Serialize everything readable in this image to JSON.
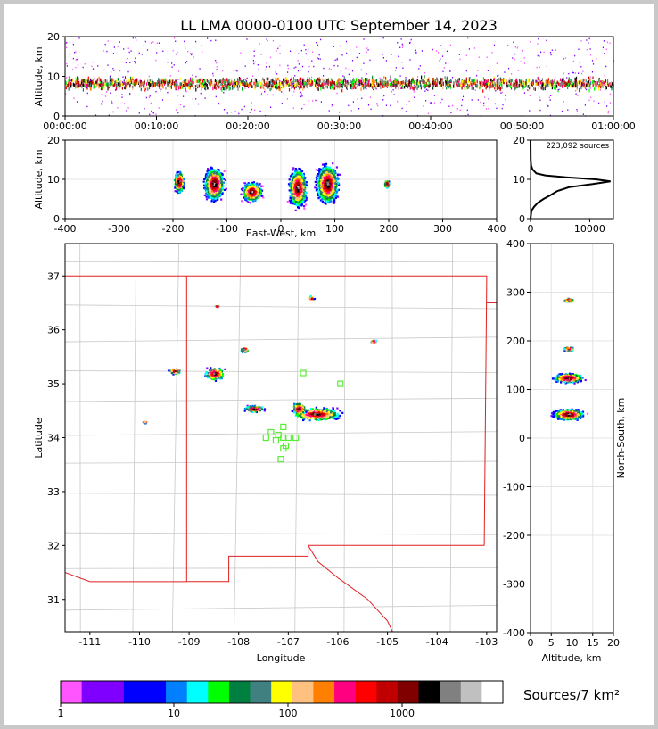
{
  "chart_data": [
    {
      "panel": "altitude-time",
      "type": "scatter",
      "title": "LL LMA 0000-0100 UTC September 14, 2023",
      "ylabel": "Altitude, km",
      "xlim": [
        "00:00:00",
        "01:00:00"
      ],
      "ylim": [
        0,
        20
      ],
      "xticks": [
        "00:00:00",
        "00:10:00",
        "00:20:00",
        "00:30:00",
        "00:40:00",
        "00:50:00",
        "01:00:00"
      ],
      "yticks": [
        0,
        10,
        20
      ],
      "core_altitude_km": [
        5,
        12
      ]
    },
    {
      "panel": "east-west-altitude",
      "type": "heatmap",
      "xlabel": "East-West, km",
      "ylabel": "Altitude, km",
      "xlim": [
        -400,
        400
      ],
      "ylim": [
        0,
        20
      ],
      "xticks": [
        -400,
        -300,
        -200,
        -100,
        0,
        100,
        200,
        300,
        400
      ],
      "yticks": [
        0,
        10,
        20
      ],
      "clusters": [
        {
          "x": -190,
          "alt": 9.5,
          "w": 20,
          "h": 8
        },
        {
          "x": -125,
          "alt": 9.0,
          "w": 40,
          "h": 12
        },
        {
          "x": -55,
          "alt": 7.0,
          "w": 40,
          "h": 7
        },
        {
          "x": 30,
          "alt": 8.0,
          "w": 35,
          "h": 14
        },
        {
          "x": 85,
          "alt": 9.0,
          "w": 45,
          "h": 14
        },
        {
          "x": 195,
          "alt": 9.0,
          "w": 10,
          "h": 3
        }
      ]
    },
    {
      "panel": "altitude-histogram",
      "type": "line",
      "annotation": "223,092 sources",
      "xlim": [
        0,
        14000
      ],
      "ylim": [
        0,
        20
      ],
      "xticks": [
        0,
        10000
      ],
      "yticks": [
        0,
        10,
        20
      ],
      "points": [
        [
          0,
          0
        ],
        [
          150,
          2
        ],
        [
          600,
          3
        ],
        [
          1200,
          4
        ],
        [
          2200,
          5
        ],
        [
          3400,
          6
        ],
        [
          4500,
          7
        ],
        [
          6500,
          8
        ],
        [
          10500,
          8.8
        ],
        [
          13500,
          9.5
        ],
        [
          11000,
          10.0
        ],
        [
          6000,
          10.5
        ],
        [
          2500,
          11.0
        ],
        [
          1000,
          11.5
        ],
        [
          350,
          12.5
        ],
        [
          100,
          13.5
        ],
        [
          30,
          15
        ],
        [
          0,
          20
        ]
      ]
    },
    {
      "panel": "plan-view-map",
      "type": "heatmap",
      "xlabel": "Longitude",
      "ylabel": "Latitude",
      "xlim": [
        -111.5,
        -102.8
      ],
      "ylim": [
        30.4,
        37.6
      ],
      "xticks": [
        -111,
        -110,
        -109,
        -108,
        -107,
        -106,
        -105,
        -104,
        -103
      ],
      "yticks": [
        31,
        32,
        33,
        34,
        35,
        36,
        37
      ],
      "clusters": [
        {
          "lon": -106.45,
          "lat": 34.45,
          "w": 1.2,
          "h": 0.3
        },
        {
          "lon": -106.8,
          "lat": 34.55,
          "w": 0.35,
          "h": 0.3
        },
        {
          "lon": -108.5,
          "lat": 35.2,
          "w": 0.5,
          "h": 0.3
        },
        {
          "lon": -109.3,
          "lat": 35.25,
          "w": 0.3,
          "h": 0.15
        },
        {
          "lon": -107.7,
          "lat": 34.55,
          "w": 0.5,
          "h": 0.15
        },
        {
          "lon": -107.9,
          "lat": 35.65,
          "w": 0.2,
          "h": 0.15
        },
        {
          "lon": -106.55,
          "lat": 36.6,
          "w": 0.15,
          "h": 0.12
        },
        {
          "lon": -105.3,
          "lat": 35.8,
          "w": 0.15,
          "h": 0.1
        },
        {
          "lon": -109.9,
          "lat": 34.3,
          "w": 0.15,
          "h": 0.05
        },
        {
          "lon": -108.45,
          "lat": 36.45,
          "w": 0.1,
          "h": 0.05
        }
      ],
      "stations": [
        [
          -107.35,
          34.1
        ],
        [
          -107.45,
          34.0
        ],
        [
          -107.25,
          33.95
        ],
        [
          -107.1,
          34.0
        ],
        [
          -107.1,
          34.2
        ],
        [
          -107.0,
          34.0
        ],
        [
          -107.2,
          34.05
        ],
        [
          -107.05,
          33.85
        ],
        [
          -107.15,
          33.6
        ],
        [
          -106.85,
          34.0
        ],
        [
          -107.1,
          33.8
        ],
        [
          -106.7,
          35.2
        ],
        [
          -105.95,
          35.0
        ]
      ]
    },
    {
      "panel": "altitude-north-south",
      "type": "heatmap",
      "xlabel": "Altitude, km",
      "ylabel": "North-South, km",
      "xlim": [
        0,
        20
      ],
      "ylim": [
        -400,
        400
      ],
      "xticks": [
        0,
        5,
        10,
        15,
        20
      ],
      "yticks": [
        -400,
        -300,
        -200,
        -100,
        0,
        100,
        200,
        300,
        400
      ],
      "clusters": [
        {
          "alt": 9,
          "ns": 50,
          "w": 12,
          "h": 30
        },
        {
          "alt": 9,
          "ns": 125,
          "w": 12,
          "h": 25
        },
        {
          "alt": 9,
          "ns": 185,
          "w": 4,
          "h": 12
        },
        {
          "alt": 9,
          "ns": 285,
          "w": 4,
          "h": 10
        }
      ]
    },
    {
      "panel": "colorbar",
      "type": "bar",
      "label": "Sources/7 km²",
      "ticks": [
        "1",
        "10",
        "100",
        "1000"
      ],
      "colors": [
        "#ff55ff",
        "#8000ff",
        "#8000ff",
        "#0000ff",
        "#0000ff",
        "#0080ff",
        "#00ffff",
        "#00ff00",
        "#008040",
        "#408080",
        "#ffff00",
        "#ffc080",
        "#ff8000",
        "#ff0080",
        "#ff0000",
        "#c00000",
        "#800000",
        "#000000",
        "#808080",
        "#c0c0c0",
        "#ffffff"
      ]
    }
  ]
}
